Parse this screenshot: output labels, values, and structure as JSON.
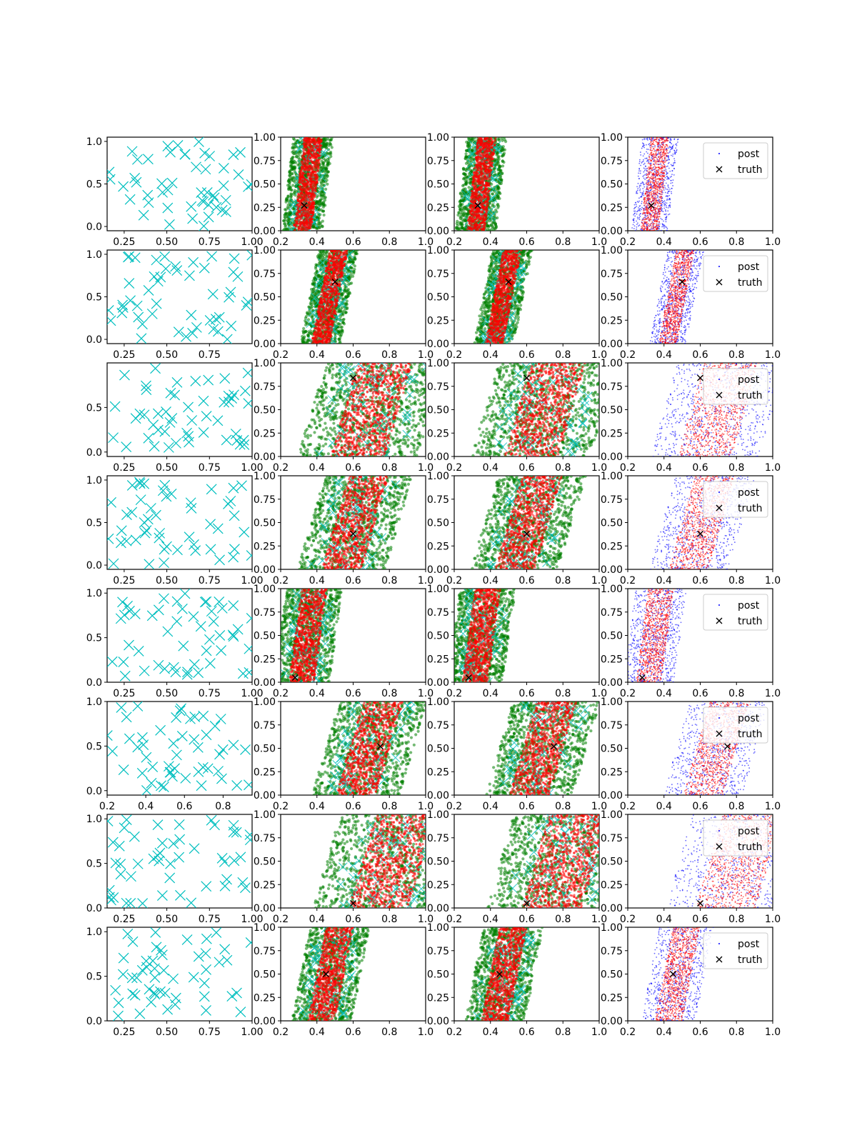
{
  "figure": {
    "rows": 8,
    "cols": 4
  },
  "colors": {
    "obs": "#00bfbf",
    "posterior_a": "#008000",
    "posterior_b": "#ff0000",
    "prior_post": "#0000ff",
    "truth": "#000000",
    "axes": "#000000",
    "legend_border": "#cccccc"
  },
  "legend": {
    "post_label": "post",
    "truth_label": "truth"
  },
  "chart_data": [
    {
      "row": 1,
      "type": "scatter",
      "panels": [
        "observations",
        "posterior samples A",
        "posterior samples B",
        "post vs truth"
      ],
      "obs_xlim": [
        0.15,
        1.0
      ],
      "obs_ylim": [
        -0.05,
        1.05
      ],
      "obs_xticks": [
        "0.25",
        "0.50",
        "0.75",
        "1.00"
      ],
      "obs_yticks": [
        "0.0",
        "0.5",
        "1.0"
      ],
      "truth": [
        0.33,
        0.27
      ],
      "band": {
        "lo": 0.3,
        "hi": 0.4,
        "slope": 0.06
      },
      "post_xlim": [
        0.2,
        1.0
      ],
      "post_ylim": [
        0.0,
        1.0
      ],
      "post_xticks": [
        "0.2",
        "0.4",
        "0.6",
        "0.8",
        "1.0"
      ],
      "post_yticks": [
        "0.00",
        "0.25",
        "0.50",
        "0.75",
        "1.00"
      ]
    },
    {
      "row": 2,
      "type": "scatter",
      "panels": [
        "observations",
        "posterior samples A",
        "posterior samples B",
        "post vs truth"
      ],
      "obs_xlim": [
        0.15,
        1.0
      ],
      "obs_ylim": [
        -0.05,
        1.05
      ],
      "obs_xticks": [
        "0.25",
        "0.50",
        "0.75"
      ],
      "obs_yticks": [
        "0.0",
        "0.5",
        "1.0"
      ],
      "truth": [
        0.5,
        0.66
      ],
      "band": {
        "lo": 0.42,
        "hi": 0.52,
        "slope": 0.1
      },
      "post_xlim": [
        0.2,
        1.0
      ],
      "post_ylim": [
        0.0,
        1.0
      ],
      "post_xticks": [
        "0.2",
        "0.4",
        "0.6",
        "0.8",
        "1.0"
      ],
      "post_yticks": [
        "0.00",
        "0.25",
        "0.50",
        "0.75",
        "1.00"
      ]
    },
    {
      "row": 3,
      "type": "scatter",
      "panels": [
        "observations",
        "posterior samples A",
        "posterior samples B",
        "post vs truth"
      ],
      "obs_xlim": [
        0.15,
        1.0
      ],
      "obs_ylim": [
        -0.05,
        1.0
      ],
      "obs_xticks": [
        "0.25",
        "0.50",
        "0.75",
        "1.00"
      ],
      "obs_yticks": [
        "0.0",
        "0.5"
      ],
      "truth": [
        0.6,
        0.84
      ],
      "band": {
        "lo": 0.55,
        "hi": 0.85,
        "slope": 0.15
      },
      "post_xlim": [
        0.2,
        1.0
      ],
      "post_ylim": [
        0.0,
        1.0
      ],
      "post_xticks": [
        "0.2",
        "0.4",
        "0.6",
        "0.8",
        "1.0"
      ],
      "post_yticks": [
        "0.00",
        "0.25",
        "0.50",
        "0.75",
        "1.00"
      ]
    },
    {
      "row": 4,
      "type": "scatter",
      "panels": [
        "observations",
        "posterior samples A",
        "posterior samples B",
        "post vs truth"
      ],
      "obs_xlim": [
        0.15,
        1.0
      ],
      "obs_ylim": [
        -0.05,
        1.05
      ],
      "obs_xticks": [
        "0.25",
        "0.50",
        "0.75",
        "1.00"
      ],
      "obs_yticks": [
        "0.0",
        "0.5",
        "1.0"
      ],
      "truth": [
        0.6,
        0.38
      ],
      "band": {
        "lo": 0.5,
        "hi": 0.72,
        "slope": 0.15
      },
      "post_xlim": [
        0.2,
        1.0
      ],
      "post_ylim": [
        0.0,
        1.0
      ],
      "post_xticks": [
        "0.2",
        "0.4",
        "0.6",
        "0.8",
        "1.0"
      ],
      "post_yticks": [
        "0.00",
        "0.25",
        "0.50",
        "0.75",
        "1.00"
      ]
    },
    {
      "row": 5,
      "type": "scatter",
      "panels": [
        "observations",
        "posterior samples A",
        "posterior samples B",
        "post vs truth"
      ],
      "obs_xlim": [
        0.15,
        1.0
      ],
      "obs_ylim": [
        0.0,
        1.05
      ],
      "obs_xticks": [
        "0.25",
        "0.50",
        "0.75",
        "1.00"
      ],
      "obs_yticks": [
        "0.0",
        "0.5",
        "1.0"
      ],
      "truth": [
        0.28,
        0.05
      ],
      "band": {
        "lo": 0.28,
        "hi": 0.42,
        "slope": 0.07
      },
      "post_xlim": [
        0.2,
        1.0
      ],
      "post_ylim": [
        0.0,
        1.0
      ],
      "post_xticks": [
        "0.2",
        "0.4",
        "0.6",
        "0.8",
        "1.0"
      ],
      "post_yticks": [
        "0.00",
        "0.25",
        "0.50",
        "0.75",
        "1.00"
      ]
    },
    {
      "row": 6,
      "type": "scatter",
      "panels": [
        "observations",
        "posterior samples A",
        "posterior samples B",
        "post vs truth"
      ],
      "obs_xlim": [
        0.2,
        0.95
      ],
      "obs_ylim": [
        -0.05,
        1.0
      ],
      "obs_xticks": [
        "0.2",
        "0.4",
        "0.6",
        "0.8"
      ],
      "obs_yticks": [
        "0.0",
        "0.5",
        "1.0"
      ],
      "truth": [
        0.75,
        0.52
      ],
      "band": {
        "lo": 0.58,
        "hi": 0.8,
        "slope": 0.15
      },
      "post_xlim": [
        0.2,
        1.0
      ],
      "post_ylim": [
        0.0,
        1.0
      ],
      "post_xticks": [
        "0.2",
        "0.4",
        "0.6",
        "0.8",
        "1.0"
      ],
      "post_yticks": [
        "0.00",
        "0.25",
        "0.50",
        "0.75",
        "1.00"
      ]
    },
    {
      "row": 7,
      "type": "scatter",
      "panels": [
        "observations",
        "posterior samples A",
        "posterior samples B",
        "post vs truth"
      ],
      "obs_xlim": [
        0.15,
        1.0
      ],
      "obs_ylim": [
        0.0,
        1.05
      ],
      "obs_xticks": [
        "0.25",
        "0.50",
        "0.75",
        "1.00"
      ],
      "obs_yticks": [
        "0.0",
        "0.5",
        "1.0"
      ],
      "truth": [
        0.6,
        0.05
      ],
      "band": {
        "lo": 0.65,
        "hi": 0.98,
        "slope": 0.15
      },
      "post_xlim": [
        0.2,
        1.0
      ],
      "post_ylim": [
        0.0,
        1.0
      ],
      "post_xticks": [
        "0.2",
        "0.4",
        "0.6",
        "0.8",
        "1.0"
      ],
      "post_yticks": [
        "0.00",
        "0.25",
        "0.50",
        "0.75",
        "1.00"
      ]
    },
    {
      "row": 8,
      "type": "scatter",
      "panels": [
        "observations",
        "posterior samples A",
        "posterior samples B",
        "post vs truth"
      ],
      "obs_xlim": [
        0.15,
        1.0
      ],
      "obs_ylim": [
        0.0,
        1.05
      ],
      "obs_xticks": [
        "0.25",
        "0.50",
        "0.75",
        "1.00"
      ],
      "obs_yticks": [
        "0.0",
        "0.5",
        "1.0"
      ],
      "truth": [
        0.45,
        0.5
      ],
      "band": {
        "lo": 0.4,
        "hi": 0.55,
        "slope": 0.1
      },
      "post_xlim": [
        0.2,
        1.0
      ],
      "post_ylim": [
        0.0,
        1.0
      ],
      "post_xticks": [
        "0.2",
        "0.4",
        "0.6",
        "0.8",
        "1.0"
      ],
      "post_yticks": [
        "0.00",
        "0.25",
        "0.50",
        "0.75",
        "1.00"
      ]
    }
  ]
}
